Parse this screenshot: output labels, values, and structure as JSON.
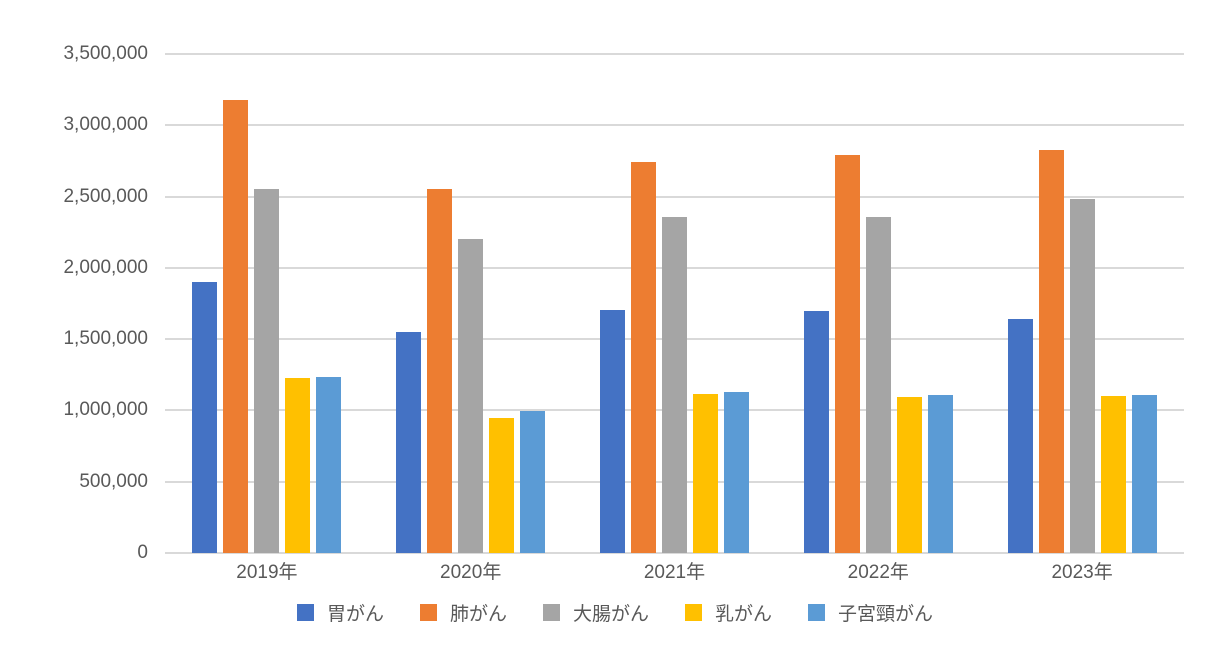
{
  "chart_data": {
    "type": "bar",
    "title": "",
    "xlabel": "",
    "ylabel": "",
    "categories": [
      "2019年",
      "2020年",
      "2021年",
      "2022年",
      "2023年"
    ],
    "series": [
      {
        "name": "胃がん",
        "color": "#4472C4",
        "values": [
          1900000,
          1550000,
          1705000,
          1700000,
          1640000
        ]
      },
      {
        "name": "肺がん",
        "color": "#ED7D31",
        "values": [
          3180000,
          2555000,
          2745000,
          2790000,
          2830000
        ]
      },
      {
        "name": "大腸がん",
        "color": "#A5A5A5",
        "values": [
          2550000,
          2200000,
          2355000,
          2355000,
          2480000
        ]
      },
      {
        "name": "乳がん",
        "color": "#FFC000",
        "values": [
          1225000,
          945000,
          1115000,
          1095000,
          1100000
        ]
      },
      {
        "name": "子宮頸がん",
        "color": "#5B9BD5",
        "values": [
          1235000,
          995000,
          1130000,
          1110000,
          1110000
        ]
      }
    ],
    "ylim": [
      0,
      3500000
    ],
    "ytick_interval": 500000,
    "ytick_labels": [
      "0",
      "500,000",
      "1,000,000",
      "1,500,000",
      "2,000,000",
      "2,500,000",
      "3,000,000",
      "3,500,000"
    ],
    "grid": true,
    "legend_position": "bottom"
  },
  "colors": {
    "background": "#FFFFFF",
    "gridline": "#D9D9D9",
    "axis_text": "#595959"
  }
}
